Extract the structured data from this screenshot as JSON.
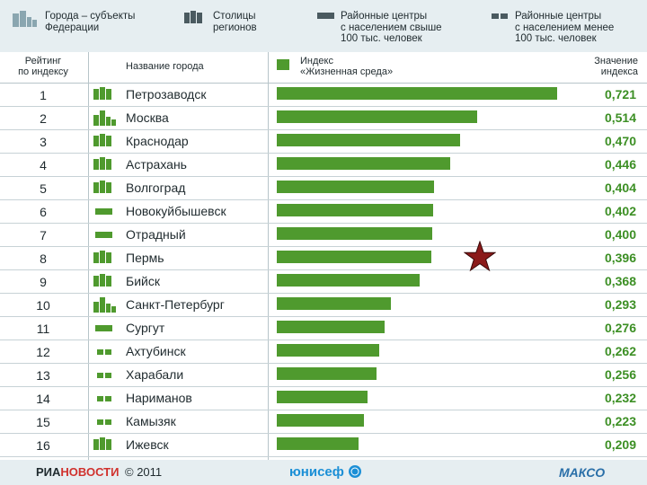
{
  "legend": {
    "items": [
      {
        "icon": "federal-city-icon",
        "text": "Города – субъекты\nФедерации"
      },
      {
        "icon": "regional-capital-icon",
        "text": "Столицы\nрегионов"
      },
      {
        "icon": "district-center-large-icon",
        "text": "Районные центры\nс населением свыше\n100 тыс. человек"
      },
      {
        "icon": "district-center-small-icon",
        "text": "Районные центры\nс населением менее\n100 тыс. человек"
      }
    ]
  },
  "header": {
    "rank": "Рейтинг\nпо индексу",
    "city": "Название города",
    "index": "Индекс\n«Жизненная среда»",
    "value": "Значение\nиндекса"
  },
  "chart_data": {
    "type": "bar",
    "orientation": "horizontal",
    "categories": [
      "Петрозаводск",
      "Москва",
      "Краснодар",
      "Астрахань",
      "Волгоград",
      "Новокуйбышевск",
      "Отрадный",
      "Пермь",
      "Бийск",
      "Санкт-Петербург",
      "Сургут",
      "Ахтубинск",
      "Харабали",
      "Нариманов",
      "Камызяк",
      "Ижевск"
    ],
    "ranks": [
      1,
      2,
      3,
      4,
      5,
      6,
      7,
      8,
      9,
      10,
      11,
      12,
      13,
      14,
      15,
      16
    ],
    "values": [
      0.721,
      0.514,
      0.47,
      0.446,
      0.404,
      0.402,
      0.4,
      0.396,
      0.368,
      0.293,
      0.276,
      0.262,
      0.256,
      0.232,
      0.223,
      0.209
    ],
    "value_labels": [
      "0,721",
      "0,514",
      "0,470",
      "0,446",
      "0,404",
      "0,402",
      "0,400",
      "0,396",
      "0,368",
      "0,293",
      "0,276",
      "0,262",
      "0,256",
      "0,232",
      "0,223",
      "0,209"
    ],
    "city_types": [
      "capital",
      "federal",
      "capital",
      "capital",
      "capital",
      "large",
      "large",
      "capital",
      "capital",
      "federal",
      "large",
      "small",
      "small",
      "small",
      "small",
      "capital"
    ],
    "xlim": [
      0,
      0.75
    ],
    "bar_color": "#4f9a2e",
    "value_color": "#3c8f24",
    "highlight": {
      "row": 8,
      "icon": "star-icon",
      "color": "#8b1a1a"
    }
  },
  "footer": {
    "ria": "РИА",
    "novosti": "НОВОСТИ",
    "copyright": "© 2011",
    "unicef": "юнисеф",
    "logo": "МАКСО"
  }
}
